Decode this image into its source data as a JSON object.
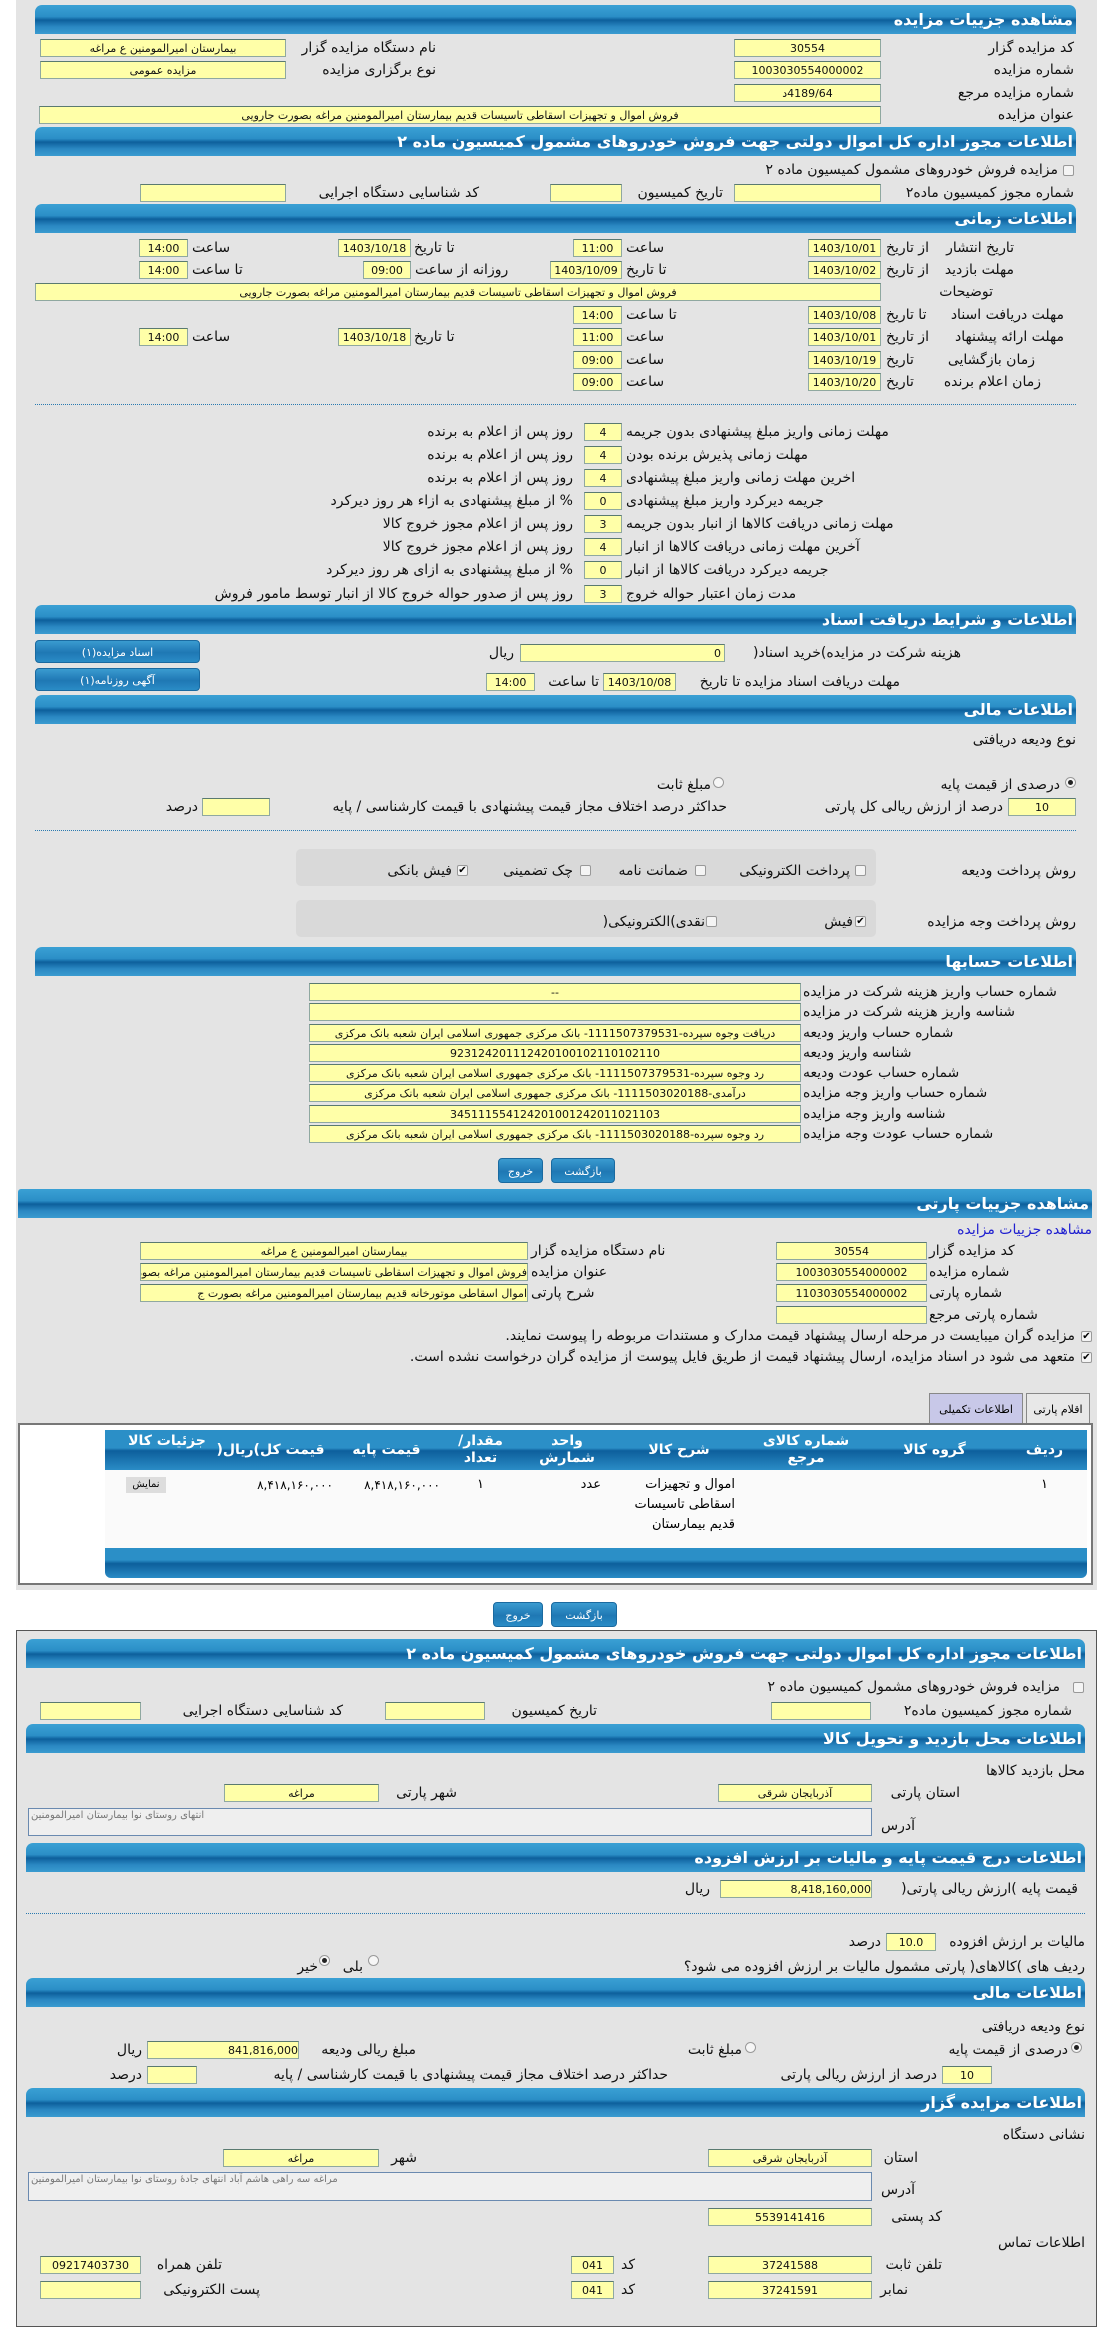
{
  "auction": {
    "header": "مشاهده جزییات مزایده",
    "code_label": "کد مزایده گزار",
    "code": "30554",
    "org_label": "نام دستگاه مزایده گزار",
    "org": "بیمارستان امیرالمومنین ع  مراغه",
    "number_label": "شماره مزایده",
    "number": "1003030554000002",
    "type_label": "نوع برگزاری مزایده",
    "type": "مزایده عمومی",
    "ref_label": "شماره مزایده مرجع",
    "ref": "4189/64د",
    "title_label": "عنوان مزایده",
    "title": "فروش اموال و تجهیزات اسقاطی تاسیسات قدیم بیمارستان امیرالمومنین مراغه بصورت جارویی"
  },
  "permit": {
    "header": "اطلاعات مجوز اداره کل اموال دولتی جهت فروش خودروهای مشمول کمیسیون ماده ۲",
    "checkbox_label": "مزایده فروش خودروهای مشمول کمیسیون ماده ۲",
    "permit_no_label": "شماره مجوز کمیسیون ماده۲",
    "permit_no": "",
    "date_label": "تاریخ کمیسیون",
    "date": "",
    "exec_code_label": "کد شناسایی دستگاه اجرایی",
    "exec_code": ""
  },
  "timing": {
    "header": "اطلاعات زمانی",
    "publish": {
      "label": "تاریخ انتشار",
      "from": "از تاریخ",
      "from_date": "1403/10/01",
      "time_label": "ساعت",
      "from_time": "11:00",
      "to": "تا تاریخ",
      "to_date": "1403/10/18",
      "time_label2": "ساعت",
      "to_time": "14:00"
    },
    "visit": {
      "label": "مهلت بازدید",
      "from": "از تاریخ",
      "from_date": "1403/10/02",
      "to": "تا تاریخ",
      "to_date": "1403/10/09",
      "daily": "روزانه از ساعت",
      "daily_from": "09:00",
      "daily_to_label": "تا ساعت",
      "daily_to": "14:00"
    },
    "desc_label": "توضیحات",
    "desc": "فروش اموال و تجهیزات اسقاطی تاسیسات قدیم بیمارستان امیرالمومنین مراغه بصورت جارویی",
    "docs": {
      "label": "مهلت دریافت اسناد",
      "to": "تا تاریخ",
      "date": "1403/10/08",
      "time_label": "تا ساعت",
      "time": "14:00"
    },
    "offer": {
      "label": "مهلت ارائه پیشنهاد",
      "from": "از تاریخ",
      "from_date": "1403/10/01",
      "time_label": "ساعت",
      "from_time": "11:00",
      "to": "تا تاریخ",
      "to_date": "1403/10/18",
      "time_label2": "ساعت",
      "to_time": "14:00"
    },
    "opening": {
      "label": "زمان بازگشایی",
      "date_label": "تاریخ",
      "date": "1403/10/19",
      "time_label": "ساعت",
      "time": "09:00"
    },
    "winner": {
      "label": "زمان اعلام برنده",
      "date_label": "تاریخ",
      "date": "1403/10/20",
      "time_label": "ساعت",
      "time": "09:00"
    }
  },
  "deadlines": [
    {
      "label": "مهلت زمانی واریز مبلغ پیشنهادی بدون جریمه",
      "value": "4",
      "suffix": "روز پس از اعلام به برنده"
    },
    {
      "label": "مهلت زمانی پذیرش برنده بودن",
      "value": "4",
      "suffix": "روز پس از اعلام به برنده"
    },
    {
      "label": "اخرین مهلت زمانی واریز مبلغ پیشنهادی",
      "value": "4",
      "suffix": "روز پس از اعلام به برنده"
    },
    {
      "label": "جریمه دیرکرد واریز مبلغ پیشنهادی",
      "value": "0",
      "suffix": "% از مبلغ پیشنهادی به ازاء هر روز دیرکرد"
    },
    {
      "label": "مهلت زمانی دریافت کالاها از انبار بدون جریمه",
      "value": "3",
      "suffix": "روز پس از اعلام مجوز خروج کالا"
    },
    {
      "label": "آخرین مهلت زمانی دریافت کالاها از انبار",
      "value": "4",
      "suffix": "روز پس از اعلام مجوز خروج کالا"
    },
    {
      "label": "جریمه دیرکرد دریافت کالاها از انبار",
      "value": "0",
      "suffix": "% از مبلغ پیشنهادی به ازای هر روز دیرکرد"
    },
    {
      "label": "مدت زمان اعتبار حواله خروج",
      "value": "3",
      "suffix": "روز پس از صدور حواله خروج کالا از انبار توسط مامور فروش"
    }
  ],
  "documents": {
    "header": "اطلاعات و شرایط دریافت اسناد",
    "fee_label": "هزینه شرکت در مزایده)خرید اسناد(",
    "fee": "0",
    "fee_unit": "ریال",
    "deadline_label": "مهلت دریافت اسناد مزایده تا تاریخ",
    "deadline_date": "1403/10/08",
    "deadline_time_label": "تا ساعت",
    "deadline_time": "14:00",
    "docs_button": "اسناد مزایده(۱)",
    "ad_button": "آگهی روزنامه(۱)"
  },
  "finance": {
    "header": "اطلاعات مالی",
    "deposit_type_label": "نوع ودیعه دریافتی",
    "percent_option": "درصدی از قیمت پایه",
    "fixed_option": "مبلغ ثابت",
    "selected": "percent",
    "percent": "10",
    "percent_suffix": "درصد از ارزش ریالی کل پارتی",
    "max_diff_label": "حداکثر درصد اختلاف مجاز قیمت پیشنهادی با قیمت کارشناسی / پایه",
    "max_diff": "",
    "max_diff_unit": "درصد",
    "deposit_method_label": "روش پرداخت ودیعه",
    "deposit_methods": [
      {
        "label": "پرداخت الکترونیکی",
        "checked": false
      },
      {
        "label": "ضمانت نامه",
        "checked": false
      },
      {
        "label": "چک تضمینی",
        "checked": false
      },
      {
        "label": "فیش بانکی",
        "checked": true
      }
    ],
    "payment_method_label": "روش پرداخت وجه مزایده",
    "payment_methods": [
      {
        "label": "فیش",
        "checked": true
      },
      {
        "label": "نقدی)الکترونیکی(",
        "checked": false
      }
    ]
  },
  "accounts": {
    "header": "اطلاعات حسابها",
    "rows": [
      {
        "label": "شماره حساب واریز هزینه شرکت در مزایده",
        "value": "--"
      },
      {
        "label": "شناسه واریز هزینه شرکت در مزایده",
        "value": ""
      },
      {
        "label": "شماره حساب واریز ودیعه",
        "value": "دریافت وجوه سپرده-1111507379531- بانک مرکزی جمهوری اسلامی ایران شعبه بانک مرکزی"
      },
      {
        "label": "شناسه واریز ودیعه",
        "value": "923124201112420100102110102110"
      },
      {
        "label": "شماره حساب عودت ودیعه",
        "value": "رد وجوه سپرده-1111507379531- بانک مرکزی جمهوری اسلامی ایران شعبه بانک مرکزی"
      },
      {
        "label": "شماره حساب واریز وجه مزایده",
        "value": "درآمدی-1111503020188- بانک مرکزی جمهوری اسلامی ایران شعبه بانک مرکزی"
      },
      {
        "label": "شناسه واریز وجه مزایده",
        "value": "345111554124201001242011021103"
      },
      {
        "label": "شماره حساب عودت وجه مزایده",
        "value": "رد وجوه سپرده-1111503020188- بانک مرکزی جمهوری اسلامی ایران شعبه بانک مرکزی"
      }
    ]
  },
  "buttons": {
    "back": "بازگشت",
    "exit": "خروج"
  },
  "lot": {
    "header": "مشاهده جزییات پارتی",
    "link": "مشاهده جزییات مزایده",
    "code_label": "کد مزایده گزار",
    "code": "30554",
    "org_label": "نام دستگاه مزایده گزار",
    "org": "بیمارستان امیرالمومنین ع  مراغه",
    "number_label": "شماره مزایده",
    "number": "1003030554000002",
    "title_label": "عنوان مزایده",
    "title": "فروش اموال و تجهیزات اسقاطی تاسیسات قدیم بیمارستان امیرالمومنین مراغه بصورت جارویی",
    "lot_no_label": "شماره پارتی",
    "lot_no": "1103030554000002",
    "desc_label": "شرح پارتی",
    "desc": "اموال اسقاطی موتورخانه قدیم بیمارستان امیرالمومنین مراغه بصورت ج",
    "lot_ref_label": "شماره پارتی مرجع",
    "lot_ref": "",
    "check1": "مزایده گران میبایست در مرحله ارسال پیشنهاد قیمت مدارک و مستندات مربوطه را پیوست نمایند.",
    "check2": "متعهد می شود در اسناد مزایده، ارسال پیشنهاد قیمت از طریق فایل پیوست از مزایده گران درخواست نشده است.",
    "tabs": [
      "اقلام پارتی",
      "اطلاعات تکمیلی"
    ],
    "table": {
      "columns": [
        "ردیف",
        "گروه کالا",
        "شماره کالای مرجع",
        "شرح کالا",
        "واحد شمارش",
        "مقدار/ تعداد",
        "قیمت پایه",
        "قیمت کل)ریال(",
        "جزئیات کالا"
      ],
      "rows": [
        [
          "۱",
          "",
          "",
          "اموال و تجهیزات اسقاطی تاسیسات قدیم بیمارستان",
          "عدد",
          "۱",
          "۸,۴۱۸,۱۶۰,۰۰۰",
          "۸,۴۱۸,۱۶۰,۰۰۰",
          "نمایش"
        ]
      ]
    }
  },
  "lot_extra": {
    "permit_header": "اطلاعات مجوز اداره کل اموال دولتی جهت فروش خودروهای مشمول کمیسیون ماده ۲",
    "permit_checkbox": "مزایده فروش خودروهای مشمول کمیسیون ماده ۲",
    "permit_no_label": "شماره مجوز کمیسیون ماده۲",
    "date_label": "تاریخ کمیسیون",
    "exec_code_label": "کد شناسایی دستگاه اجرایی",
    "visit_header": "اطلاعات محل بازدید و تحویل کالا",
    "visit_place_label": "محل بازدید کالاها",
    "province_label": "استان پارتی",
    "province": "آذربایجان شرقی",
    "city_label": "شهر پارتی",
    "city": "مراغه",
    "address_label": "آدرس",
    "address": "انتهای روستای نوا بیمارستان امیرالمومنین",
    "price_header": "اطلاعات درج قیمت پایه و مالیات بر ارزش افزوده",
    "base_price_label": "قیمت پایه )ارزش ریالی پارتی(",
    "base_price": "8,418,160,000",
    "base_price_unit": "ریال",
    "vat_label": "مالیات بر ارزش افزوده",
    "vat": "10.0",
    "vat_unit": "درصد",
    "vat_question": "ردیف های )کالاهای( پارتی مشمول مالیات بر ارزش افزوده می شود؟",
    "yes": "بلی",
    "no": "خیر",
    "vat_answer": "no",
    "finance_header": "اطلاعات مالی",
    "deposit_type_label": "نوع ودیعه دریافتی",
    "percent_option": "درصدی از قیمت پایه",
    "fixed_option": "مبلغ ثابت",
    "deposit_amount_label": "مبلغ ریالی ودیعه",
    "deposit_amount": "841,816,000",
    "deposit_unit": "ریال",
    "percent": "10",
    "percent_suffix": "درصد از ارزش ریالی پارتی",
    "max_diff_label": "حداکثر درصد اختلاف مجاز قیمت پیشنهادی با قیمت کارشناسی / پایه",
    "max_diff_unit": "درصد",
    "seller_header": "اطلاعات مزایده گزار",
    "org_address_label": "نشانی دستگاه",
    "seller_province_label": "استان",
    "seller_province": "آذربایجان شرقی",
    "seller_city_label": "شهر",
    "seller_city": "مراغه",
    "seller_address_label": "آدرس",
    "seller_address": "مراغه سه راهی هاشم آباد انتهای جادهٔ روستای نوا بیمارستان امیرالمومنین",
    "postal_label": "کد پستی",
    "postal": "5539141416",
    "contact_label": "اطلاعات تماس",
    "phone_label": "تلفن ثابت",
    "phone": "37241588",
    "code_label": "کد",
    "phone_code": "041",
    "mobile_label": "تلفن همراه",
    "mobile": "09217403730",
    "fax_label": "نمابر",
    "fax": "37241591",
    "fax_code": "041",
    "email_label": "پست الکترونیکی",
    "email": ""
  },
  "colors": {
    "header_blue": "#2b8fc7",
    "input_yellow": "#ffffa8",
    "panel_gray": "#e4e4e4",
    "tab_active": "#c8c8e8"
  }
}
